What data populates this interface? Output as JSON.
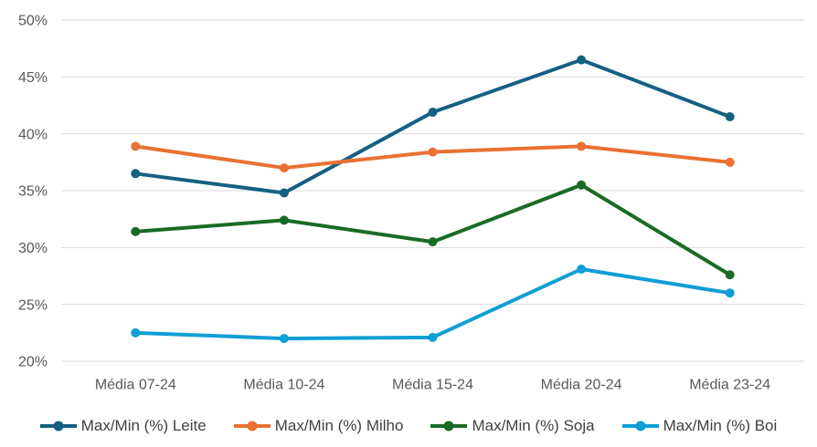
{
  "chart_data": {
    "type": "line",
    "title": "",
    "xlabel": "",
    "ylabel": "",
    "categories": [
      "Média 07-24",
      "Média 10-24",
      "Média 15-24",
      "Média 20-24",
      "Média 23-24"
    ],
    "series": [
      {
        "name": "Max/Min (%) Leite",
        "color": "#156082",
        "values": [
          36.5,
          34.8,
          41.9,
          46.5,
          41.5
        ]
      },
      {
        "name": "Max/Min (%) Milho",
        "color": "#E97132",
        "values": [
          38.9,
          37.0,
          38.4,
          38.9,
          37.5
        ]
      },
      {
        "name": "Max/Min (%) Soja",
        "color": "#196B24",
        "values": [
          31.4,
          32.4,
          30.5,
          35.5,
          27.6
        ]
      },
      {
        "name": "Max/Min (%) Boi",
        "color": "#0F9ED5",
        "values": [
          22.5,
          22.0,
          22.1,
          28.1,
          26.0
        ]
      }
    ],
    "ylim": [
      20,
      50
    ],
    "ytick_step": 5,
    "ytick_labels": [
      "20%",
      "25%",
      "30%",
      "35%",
      "40%",
      "45%",
      "50%"
    ],
    "grid": true,
    "legend_position": "bottom"
  },
  "styles": {
    "background_color": "#FFFFFF",
    "gridline_color": "#D9D9D9",
    "axis_label_color": "#595959",
    "legend_text_color": "#404040"
  }
}
